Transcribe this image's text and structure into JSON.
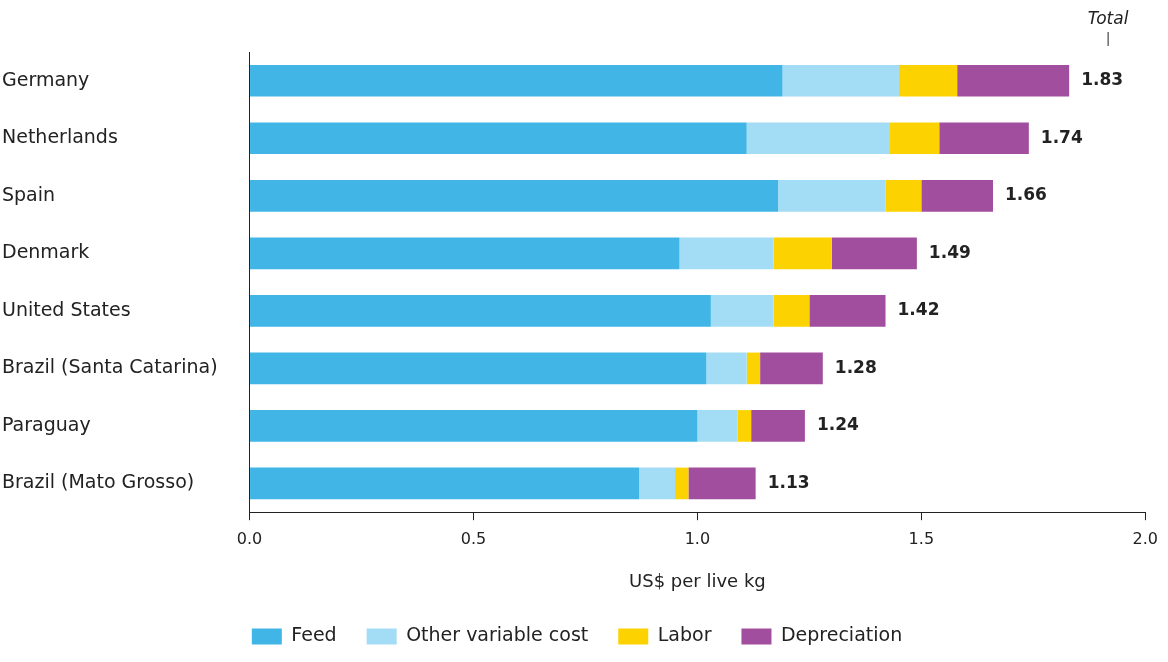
{
  "chart_data": {
    "type": "bar",
    "orientation": "horizontal",
    "stacked": true,
    "categories": [
      "Germany",
      "Netherlands",
      "Spain",
      "Denmark",
      "United States",
      "Brazil (Santa Catarina)",
      "Paraguay",
      "Brazil (Mato Grosso)"
    ],
    "series": [
      {
        "name": "Feed",
        "color": "#41b6e6",
        "values": [
          1.19,
          1.11,
          1.18,
          0.96,
          1.03,
          1.02,
          1.0,
          0.87
        ]
      },
      {
        "name": "Other variable cost",
        "color": "#a3dcf5",
        "values": [
          0.26,
          0.32,
          0.24,
          0.21,
          0.14,
          0.09,
          0.09,
          0.08
        ]
      },
      {
        "name": "Labor",
        "color": "#fcd300",
        "values": [
          0.13,
          0.11,
          0.08,
          0.13,
          0.08,
          0.03,
          0.03,
          0.03
        ]
      },
      {
        "name": "Depreciation",
        "color": "#a24e9e",
        "values": [
          0.25,
          0.2,
          0.16,
          0.19,
          0.17,
          0.14,
          0.12,
          0.15
        ]
      }
    ],
    "totals": [
      "1.83",
      "1.74",
      "1.66",
      "1.49",
      "1.42",
      "1.28",
      "1.24",
      "1.13"
    ],
    "annotations": [
      "Total"
    ],
    "xlabel": "US$ per live kg",
    "xlim": [
      0,
      2
    ],
    "xticks": [
      {
        "value": 0,
        "label": "0.0"
      },
      {
        "value": 0.5,
        "label": "0.5"
      },
      {
        "value": 1,
        "label": "1.0"
      },
      {
        "value": 1.5,
        "label": "1.5"
      },
      {
        "value": 2,
        "label": "2.0"
      }
    ],
    "grid": false,
    "legend": "bottom"
  }
}
